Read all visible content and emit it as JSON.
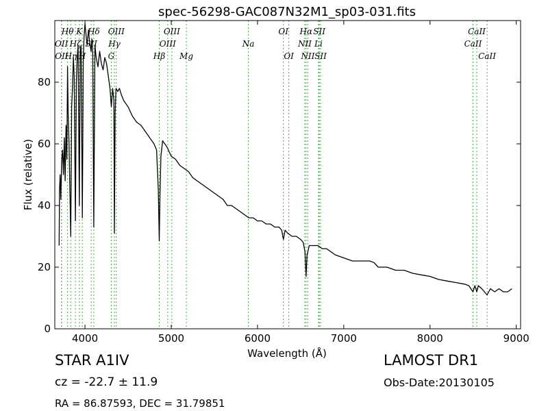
{
  "chart_data": {
    "type": "line",
    "title": "spec-56298-GAC087N32M1_sp03-031.fits",
    "xlabel": "Wavelength (Å)",
    "ylabel": "Flux (relative)",
    "xlim": [
      3650,
      9050
    ],
    "ylim": [
      0,
      100
    ],
    "xticks": [
      4000,
      5000,
      6000,
      7000,
      8000,
      9000
    ],
    "yticks": [
      0,
      20,
      40,
      60,
      80
    ],
    "grid": false,
    "line_color": "#000000",
    "marker_color": "#44aa44",
    "spectral_lines": [
      {
        "label": "OII",
        "wavelength": 3727,
        "row": 2
      },
      {
        "label": "OII",
        "wavelength": 3729,
        "row": 3
      },
      {
        "label": "Hθ",
        "wavelength": 3798,
        "row": 1
      },
      {
        "label": "Hη",
        "wavelength": 3835,
        "row": 3
      },
      {
        "label": "Hζ",
        "wavelength": 3889,
        "row": 2
      },
      {
        "label": "K",
        "wavelength": 3934,
        "row": 1
      },
      {
        "label": "H",
        "wavelength": 3969,
        "row": 3
      },
      {
        "label": "Hδ",
        "wavelength": 4102,
        "row": 1
      },
      {
        "label": "SII",
        "wavelength": 4072,
        "row": 2
      },
      {
        "label": "G",
        "wavelength": 4305,
        "row": 3
      },
      {
        "label": "Hγ",
        "wavelength": 4341,
        "row": 2
      },
      {
        "label": "OIII",
        "wavelength": 4363,
        "row": 1
      },
      {
        "label": "Hβ",
        "wavelength": 4861,
        "row": 3
      },
      {
        "label": "OIII",
        "wavelength": 4959,
        "row": 2
      },
      {
        "label": "OIII",
        "wavelength": 5007,
        "row": 1
      },
      {
        "label": "Mg",
        "wavelength": 5175,
        "row": 3
      },
      {
        "label": "Na",
        "wavelength": 5894,
        "row": 2
      },
      {
        "label": "OI",
        "wavelength": 6300,
        "row": 1
      },
      {
        "label": "OI",
        "wavelength": 6363,
        "row": 3
      },
      {
        "label": "NII",
        "wavelength": 6548,
        "row": 2
      },
      {
        "label": "Hα",
        "wavelength": 6563,
        "row": 1
      },
      {
        "label": "NII",
        "wavelength": 6583,
        "row": 3
      },
      {
        "label": "Li",
        "wavelength": 6707,
        "row": 2
      },
      {
        "label": "SII",
        "wavelength": 6716,
        "row": 1
      },
      {
        "label": "SII",
        "wavelength": 6731,
        "row": 3
      },
      {
        "label": "CaII",
        "wavelength": 8498,
        "row": 2
      },
      {
        "label": "CaII",
        "wavelength": 8542,
        "row": 1
      },
      {
        "label": "CaII",
        "wavelength": 8662,
        "row": 3
      }
    ],
    "series": [
      {
        "x": [
          3700,
          3705,
          3712,
          3720,
          3730,
          3740,
          3750,
          3760,
          3770,
          3780,
          3790,
          3798,
          3805,
          3815,
          3825,
          3835,
          3845,
          3855,
          3865,
          3875,
          3889,
          3900,
          3910,
          3920,
          3934,
          3945,
          3955,
          3969,
          3980,
          3990,
          4000,
          4010,
          4025,
          4040,
          4050,
          4060,
          4070,
          4080,
          4090,
          4102,
          4115,
          4130,
          4150,
          4170,
          4190,
          4210,
          4230,
          4250,
          4270,
          4290,
          4305,
          4320,
          4335,
          4341,
          4350,
          4360,
          4380,
          4400,
          4420,
          4450,
          4500,
          4550,
          4600,
          4650,
          4700,
          4750,
          4800,
          4830,
          4850,
          4861,
          4870,
          4880,
          4900,
          4950,
          5000,
          5050,
          5100,
          5150,
          5200,
          5250,
          5300,
          5350,
          5400,
          5450,
          5500,
          5550,
          5600,
          5650,
          5700,
          5750,
          5800,
          5850,
          5900,
          5950,
          6000,
          6050,
          6100,
          6150,
          6200,
          6250,
          6280,
          6300,
          6320,
          6350,
          6400,
          6450,
          6500,
          6530,
          6550,
          6563,
          6575,
          6600,
          6650,
          6700,
          6750,
          6800,
          6900,
          7000,
          7100,
          7200,
          7300,
          7350,
          7400,
          7500,
          7600,
          7700,
          7800,
          7900,
          8000,
          8100,
          8200,
          8300,
          8400,
          8450,
          8498,
          8520,
          8542,
          8560,
          8600,
          8662,
          8700,
          8750,
          8800,
          8850,
          8900,
          8950
        ],
        "y": [
          27,
          45,
          50,
          42,
          55,
          58,
          50,
          62,
          48,
          66,
          55,
          85,
          70,
          60,
          45,
          30,
          72,
          78,
          88,
          82,
          35,
          80,
          88,
          92,
          40,
          90,
          92,
          36,
          88,
          95,
          99,
          96,
          92,
          97,
          94,
          92,
          90,
          94,
          89,
          33,
          92,
          88,
          85,
          90,
          86,
          84,
          88,
          86,
          82,
          78,
          72,
          78,
          74,
          31,
          70,
          78,
          77,
          78,
          76,
          74,
          72,
          69,
          67,
          66,
          64,
          62,
          60,
          58,
          45,
          28.5,
          44,
          56,
          61,
          59,
          56,
          55,
          53,
          52,
          51,
          49,
          48,
          47,
          46,
          45,
          44,
          43,
          42,
          40,
          40,
          39,
          38,
          37,
          36,
          36,
          35,
          35,
          34,
          34,
          33,
          33,
          32,
          29,
          32,
          31,
          30,
          30,
          29,
          28,
          25,
          17,
          24,
          27,
          27,
          27,
          26,
          26,
          24,
          23,
          22,
          22,
          22,
          21.5,
          20,
          20,
          19,
          19,
          18,
          17.5,
          17,
          16,
          15.5,
          15,
          14.5,
          14,
          12,
          14,
          12,
          14,
          13,
          11,
          13,
          12,
          13,
          12,
          12,
          13
        ]
      }
    ]
  },
  "footer": {
    "class_label": "STAR   A1IV",
    "survey": "LAMOST DR1",
    "redshift": "cz = -22.7 ± 11.9",
    "obs_date": "Obs-Date:20130105",
    "coords": "RA = 86.87593, DEC = 31.79851"
  }
}
